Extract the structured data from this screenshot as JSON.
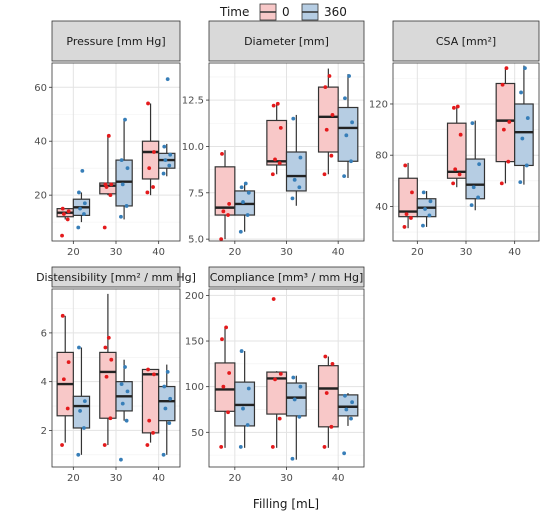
{
  "legend": {
    "title": "Time",
    "items": [
      {
        "label": "0",
        "fill": "#f8c8c8",
        "point": "#e41a1c"
      },
      {
        "label": "360",
        "fill": "#b6cde3",
        "point": "#377eb8"
      }
    ]
  },
  "xlabel": "Filling [mL]",
  "chart_data": [
    {
      "type": "boxplot",
      "title": "Pressure [mm Hg]",
      "categories": [
        "20",
        "30",
        "40"
      ],
      "ylim": [
        3,
        69
      ],
      "yticks": [
        20,
        40,
        60
      ],
      "ytick_labels": [
        "20",
        "40",
        "60"
      ],
      "series": [
        {
          "name": "0",
          "boxes": [
            {
              "min": 11,
              "q1": 12,
              "median": 13.5,
              "q3": 15,
              "max": 15,
              "points": [
                5,
                11,
                13,
                14,
                15
              ]
            },
            {
              "min": 20,
              "q1": 20.5,
              "median": 23.5,
              "q3": 24.5,
              "max": 42,
              "points": [
                8,
                20,
                23,
                24,
                24,
                42
              ]
            },
            {
              "min": 20,
              "q1": 26,
              "median": 36,
              "q3": 40,
              "max": 54,
              "points": [
                21,
                23,
                30,
                36,
                54
              ]
            }
          ]
        },
        {
          "name": "360",
          "boxes": [
            {
              "min": 10,
              "q1": 12.5,
              "median": 15.5,
              "q3": 18.5,
              "max": 21,
              "points": [
                8,
                13,
                15,
                17,
                21,
                29
              ]
            },
            {
              "min": 11,
              "q1": 16,
              "median": 25,
              "q3": 33,
              "max": 48,
              "points": [
                12,
                16,
                24,
                30,
                33,
                48
              ]
            },
            {
              "min": 27,
              "q1": 30,
              "median": 33,
              "q3": 35.5,
              "max": 39,
              "points": [
                28,
                31,
                33,
                35,
                38,
                63
              ]
            }
          ]
        }
      ]
    },
    {
      "type": "boxplot",
      "title": "Diameter [mm]",
      "categories": [
        "20",
        "30",
        "40"
      ],
      "ylim": [
        4.9,
        14.5
      ],
      "yticks": [
        5.0,
        7.5,
        10.0,
        12.5
      ],
      "ytick_labels": [
        "5.0",
        "7.5",
        "10.0",
        "12.5"
      ],
      "series": [
        {
          "name": "0",
          "boxes": [
            {
              "min": 5.0,
              "q1": 6.3,
              "median": 6.7,
              "q3": 8.9,
              "max": 9.8,
              "points": [
                5.0,
                6.3,
                6.5,
                6.9,
                9.6
              ]
            },
            {
              "min": 8.5,
              "q1": 9.0,
              "median": 9.2,
              "q3": 11.4,
              "max": 12.3,
              "points": [
                8.5,
                9.1,
                9.3,
                11.0,
                12.2,
                12.3
              ]
            },
            {
              "min": 8.5,
              "q1": 9.7,
              "median": 11.6,
              "q3": 13.2,
              "max": 14.2,
              "points": [
                8.5,
                9.5,
                10.9,
                11.7,
                13.2,
                13.8
              ]
            }
          ]
        },
        {
          "name": "360",
          "boxes": [
            {
              "min": 5.4,
              "q1": 6.3,
              "median": 6.9,
              "q3": 7.6,
              "max": 8.0,
              "points": [
                5.4,
                6.3,
                7.0,
                7.5,
                7.8,
                8.0
              ]
            },
            {
              "min": 6.8,
              "q1": 7.6,
              "median": 8.4,
              "q3": 9.7,
              "max": 11.7,
              "points": [
                7.2,
                7.8,
                8.2,
                9.4,
                11.5
              ]
            },
            {
              "min": 8.3,
              "q1": 9.2,
              "median": 11.0,
              "q3": 12.1,
              "max": 13.9,
              "points": [
                8.4,
                9.2,
                10.6,
                11.3,
                12.6,
                13.8
              ]
            }
          ]
        }
      ]
    },
    {
      "type": "boxplot",
      "title": "CSA [mm²]",
      "categories": [
        "20",
        "30",
        "40"
      ],
      "ylim": [
        13,
        152
      ],
      "yticks": [
        40,
        80,
        120
      ],
      "ytick_labels": [
        "40",
        "80",
        "120"
      ],
      "series": [
        {
          "name": "0",
          "boxes": [
            {
              "min": 23,
              "q1": 32,
              "median": 36,
              "q3": 62,
              "max": 74,
              "points": [
                24,
                31,
                34,
                51,
                72
              ]
            },
            {
              "min": 55,
              "q1": 62,
              "median": 67,
              "q3": 105,
              "max": 118,
              "points": [
                58,
                65,
                69,
                96,
                117,
                118
              ]
            },
            {
              "min": 58,
              "q1": 75,
              "median": 107,
              "q3": 136,
              "max": 148,
              "points": [
                58,
                75,
                100,
                106,
                135,
                148
              ]
            }
          ]
        },
        {
          "name": "360",
          "boxes": [
            {
              "min": 24,
              "q1": 32,
              "median": 39,
              "q3": 46,
              "max": 52,
              "points": [
                25,
                33,
                38,
                44,
                51
              ]
            },
            {
              "min": 37,
              "q1": 46,
              "median": 57,
              "q3": 77,
              "max": 107,
              "points": [
                41,
                47,
                55,
                73,
                105
              ]
            },
            {
              "min": 57,
              "q1": 72,
              "median": 98,
              "q3": 120,
              "max": 150,
              "points": [
                59,
                72,
                93,
                109,
                129,
                148
              ]
            }
          ]
        }
      ]
    },
    {
      "type": "boxplot",
      "title": "Distensibility [mm² / mm Hg]",
      "categories": [
        "20",
        "30",
        "40"
      ],
      "ylim": [
        0.5,
        7.8
      ],
      "yticks": [
        2,
        4,
        6
      ],
      "ytick_labels": [
        "2",
        "4",
        "6"
      ],
      "series": [
        {
          "name": "0",
          "boxes": [
            {
              "min": 1.5,
              "q1": 2.6,
              "median": 3.9,
              "q3": 5.2,
              "max": 6.7,
              "points": [
                1.4,
                2.9,
                4.1,
                4.8,
                6.7
              ]
            },
            {
              "min": 1.4,
              "q1": 2.5,
              "median": 4.4,
              "q3": 5.2,
              "max": 7.6,
              "points": [
                1.4,
                2.5,
                4.2,
                4.9,
                5.4,
                5.8
              ]
            },
            {
              "min": 1.5,
              "q1": 1.9,
              "median": 4.3,
              "q3": 4.5,
              "max": 4.5,
              "points": [
                1.4,
                1.9,
                2.4,
                4.3,
                4.5
              ]
            }
          ]
        },
        {
          "name": "360",
          "boxes": [
            {
              "min": 1.0,
              "q1": 2.1,
              "median": 3.0,
              "q3": 3.4,
              "max": 5.4,
              "points": [
                1.0,
                2.1,
                2.8,
                3.2,
                5.4
              ]
            },
            {
              "min": 2.4,
              "q1": 2.8,
              "median": 3.4,
              "q3": 4.0,
              "max": 4.9,
              "points": [
                0.8,
                2.4,
                3.1,
                3.6,
                3.9,
                4.6
              ]
            },
            {
              "min": 1.0,
              "q1": 2.4,
              "median": 3.2,
              "q3": 3.8,
              "max": 4.7,
              "points": [
                1.0,
                2.3,
                2.9,
                3.3,
                3.8,
                4.4
              ]
            }
          ]
        }
      ]
    },
    {
      "type": "boxplot",
      "title": "Compliance [mm³ / mm Hg]",
      "categories": [
        "20",
        "30",
        "40"
      ],
      "ylim": [
        12,
        207
      ],
      "yticks": [
        50,
        100,
        150,
        200
      ],
      "ytick_labels": [
        "50",
        "100",
        "150",
        "200"
      ],
      "series": [
        {
          "name": "0",
          "boxes": [
            {
              "min": 33,
              "q1": 73,
              "median": 97,
              "q3": 126,
              "max": 165,
              "points": [
                34,
                72,
                100,
                115,
                152,
                165
              ]
            },
            {
              "min": 33,
              "q1": 70,
              "median": 109,
              "q3": 116,
              "max": 117,
              "points": [
                34,
                65,
                108,
                114,
                196
              ]
            },
            {
              "min": 33,
              "q1": 56,
              "median": 98,
              "q3": 123,
              "max": 133,
              "points": [
                34,
                56,
                93,
                125,
                133
              ]
            }
          ]
        },
        {
          "name": "360",
          "boxes": [
            {
              "min": 33,
              "q1": 57,
              "median": 80,
              "q3": 105,
              "max": 139,
              "points": [
                34,
                58,
                76,
                98,
                139
              ]
            },
            {
              "min": 20,
              "q1": 68,
              "median": 88,
              "q3": 104,
              "max": 112,
              "points": [
                21,
                67,
                86,
                100,
                110
              ]
            },
            {
              "min": 57,
              "q1": 68,
              "median": 78,
              "q3": 91,
              "max": 93,
              "points": [
                27,
                65,
                75,
                83,
                90
              ]
            }
          ]
        }
      ]
    }
  ]
}
